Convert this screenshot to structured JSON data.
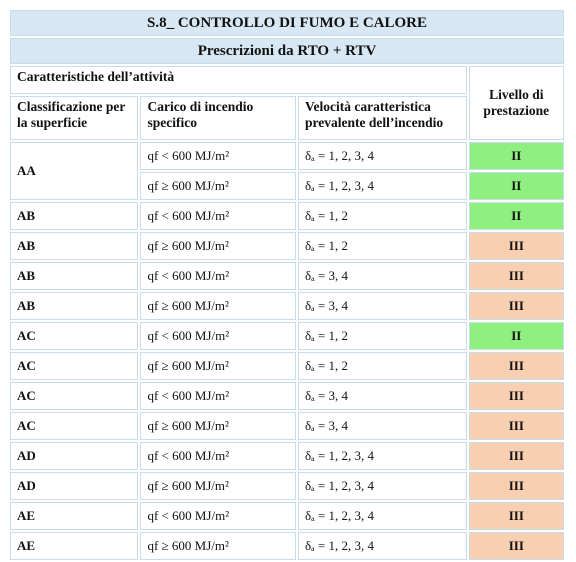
{
  "header": {
    "title": "S.8_ CONTROLLO DI FUMO E CALORE",
    "subtitle": "Prescrizioni da RTO + RTV"
  },
  "table": {
    "group_header": "Caratteristiche dell’attività",
    "level_header": "Livello di prestazione",
    "columns": [
      "Classificazione per la superficie",
      "Carico di incendio specifico",
      "Velocità caratteristica prevalente dell’incendio"
    ],
    "rows": [
      {
        "classificazione": "AA",
        "carico": "qf < 600 MJ/m²",
        "velocita": "δₐ = 1, 2, 3, 4",
        "livello": "II",
        "color": "#8ef07f"
      },
      {
        "classificazione": null,
        "carico": "qf ≥ 600 MJ/m²",
        "velocita": "δₐ = 1, 2, 3, 4",
        "livello": "II",
        "color": "#8ef07f"
      },
      {
        "classificazione": "AB",
        "carico": "qf < 600 MJ/m²",
        "velocita": "δₐ = 1, 2",
        "livello": "II",
        "color": "#8ef07f"
      },
      {
        "classificazione": "AB",
        "carico": "qf ≥ 600 MJ/m²",
        "velocita": "δₐ = 1, 2",
        "livello": "III",
        "color": "#f9cfb2"
      },
      {
        "classificazione": "AB",
        "carico": "qf < 600 MJ/m²",
        "velocita": "δₐ = 3, 4",
        "livello": "III",
        "color": "#f9cfb2"
      },
      {
        "classificazione": "AB",
        "carico": "qf ≥ 600 MJ/m²",
        "velocita": "δₐ = 3, 4",
        "livello": "III",
        "color": "#f9cfb2"
      },
      {
        "classificazione": "AC",
        "carico": "qf < 600 MJ/m²",
        "velocita": "δₐ = 1, 2",
        "livello": "II",
        "color": "#8ef07f"
      },
      {
        "classificazione": "AC",
        "carico": "qf ≥ 600 MJ/m²",
        "velocita": "δₐ = 1, 2",
        "livello": "III",
        "color": "#f9cfb2"
      },
      {
        "classificazione": "AC",
        "carico": "qf < 600 MJ/m²",
        "velocita": "δₐ = 3, 4",
        "livello": "III",
        "color": "#f9cfb2"
      },
      {
        "classificazione": "AC",
        "carico": "qf ≥ 600 MJ/m²",
        "velocita": "δₐ = 3, 4",
        "livello": "III",
        "color": "#f9cfb2"
      },
      {
        "classificazione": "AD",
        "carico": "qf < 600 MJ/m²",
        "velocita": "δₐ = 1, 2, 3, 4",
        "livello": "III",
        "color": "#f9cfb2"
      },
      {
        "classificazione": "AD",
        "carico": "qf ≥ 600 MJ/m²",
        "velocita": "δₐ = 1, 2, 3, 4",
        "livello": "III",
        "color": "#f9cfb2"
      },
      {
        "classificazione": "AE",
        "carico": "qf < 600 MJ/m²",
        "velocita": "δₐ = 1, 2, 3, 4",
        "livello": "III",
        "color": "#f9cfb2"
      },
      {
        "classificazione": "AE",
        "carico": "qf ≥ 600 MJ/m²",
        "velocita": "δₐ = 1, 2, 3, 4",
        "livello": "III",
        "color": "#f9cfb2"
      }
    ]
  }
}
